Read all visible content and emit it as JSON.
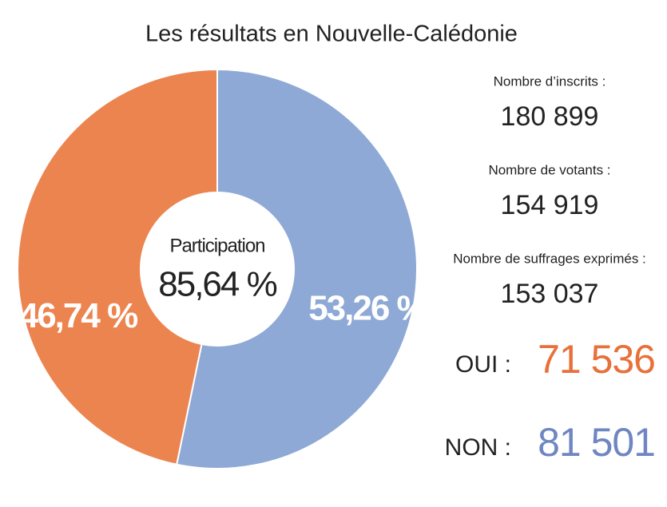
{
  "chart_data": {
    "type": "pie",
    "title": "Les résultats en Nouvelle-Calédonie",
    "values": [
      53.26,
      46.74
    ],
    "value_labels": [
      "53,26 %",
      "46,74 %"
    ],
    "colors": [
      "#8ea9d5",
      "#ec8450"
    ],
    "start_angle": 0,
    "direction": "clockwise",
    "donut": true,
    "center_label": "Participation",
    "center_value_label": "85,64 %"
  },
  "stats": [
    {
      "label": "Nombre d’inscrits :",
      "value": "180 899"
    },
    {
      "label": "Nombre de votants :",
      "value": "154 919"
    },
    {
      "label": "Nombre de suffrages exprimés :",
      "value": "153 037"
    }
  ],
  "results": [
    {
      "name": "OUI :",
      "value": "71 536",
      "color": "#e8703a"
    },
    {
      "name": "NON :",
      "value": "81 501",
      "color": "#6f86c2"
    }
  ]
}
